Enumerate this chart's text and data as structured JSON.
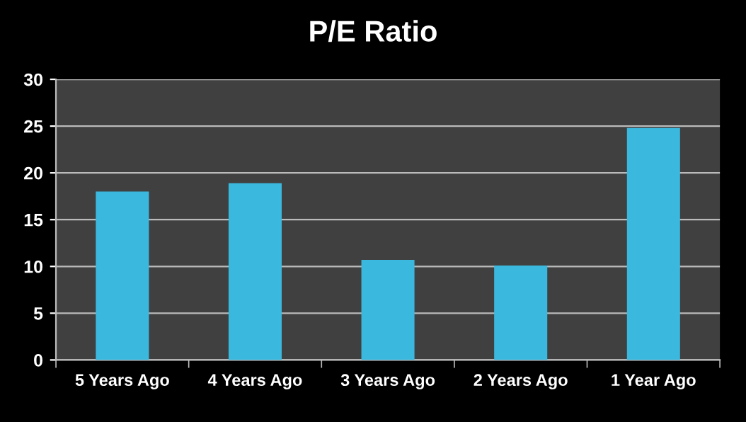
{
  "chart_data": {
    "type": "bar",
    "title": "P/E Ratio",
    "categories": [
      "5 Years Ago",
      "4 Years Ago",
      "3 Years Ago",
      "2 Years Ago",
      "1 Year Ago"
    ],
    "values": [
      18.0,
      18.9,
      10.7,
      10.1,
      24.8
    ],
    "color": "#3bb8de",
    "ylim": [
      0,
      30
    ],
    "yticks": [
      0,
      5,
      10,
      15,
      20,
      25,
      30
    ],
    "grid": "y"
  }
}
